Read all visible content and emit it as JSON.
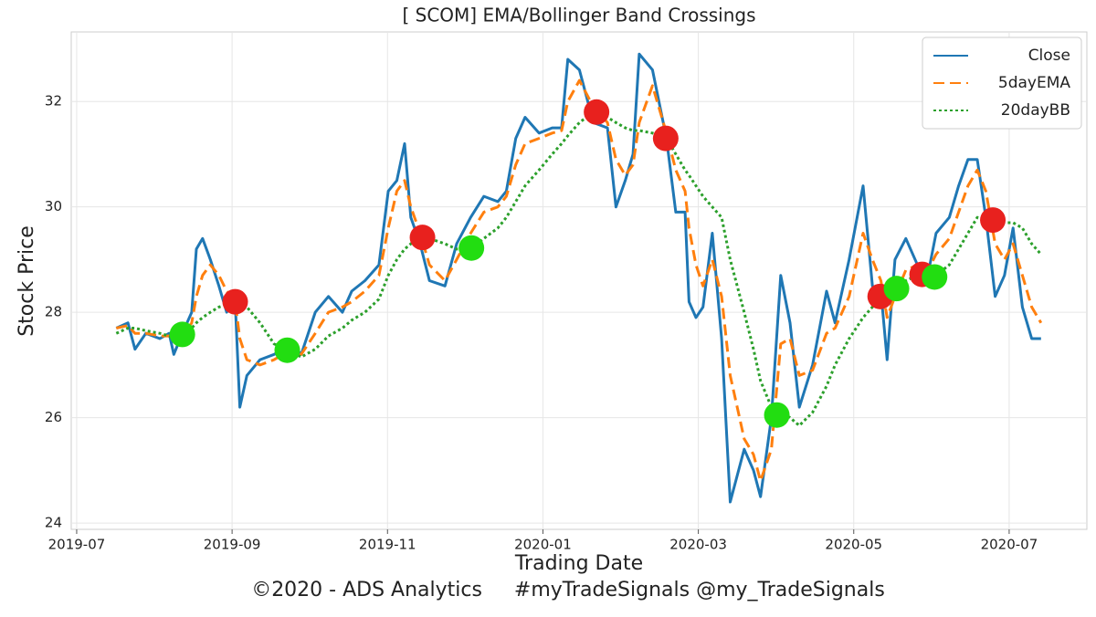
{
  "chart_data": {
    "type": "line",
    "title": "[ SCOM] EMA/Bollinger Band Crossings",
    "x_label": "Trading Date",
    "y_label": "Stock Price",
    "footer": "©2020 - ADS Analytics     #myTradeSignals @my_TradeSignals",
    "x": [
      0.51,
      0.66,
      0.75,
      0.89,
      1.07,
      1.19,
      1.25,
      1.36,
      1.48,
      1.54,
      1.62,
      1.72,
      1.83,
      1.93,
      2.04,
      2.1,
      2.19,
      2.36,
      2.54,
      2.77,
      2.89,
      3.07,
      3.24,
      3.42,
      3.54,
      3.71,
      3.89,
      4.01,
      4.12,
      4.22,
      4.3,
      4.42,
      4.54,
      4.74,
      4.89,
      5.07,
      5.24,
      5.42,
      5.53,
      5.65,
      5.77,
      5.95,
      6.12,
      6.24,
      6.32,
      6.47,
      6.65,
      6.83,
      6.94,
      7.06,
      7.16,
      7.24,
      7.41,
      7.59,
      7.71,
      7.83,
      7.88,
      7.97,
      8.06,
      8.18,
      8.3,
      8.41,
      8.59,
      8.71,
      8.8,
      8.94,
      9.06,
      9.18,
      9.3,
      9.47,
      9.65,
      9.76,
      9.94,
      10.12,
      10.24,
      10.35,
      10.43,
      10.53,
      10.67,
      10.82,
      10.94,
      11.06,
      11.23,
      11.35,
      11.47,
      11.59,
      11.7,
      11.82,
      11.94,
      12.05,
      12.17,
      12.29,
      12.41
    ],
    "series": [
      {
        "name": "Close",
        "color": "#1f77b4",
        "linestyle": "solid",
        "values": [
          27.7,
          27.8,
          27.3,
          27.6,
          27.5,
          27.6,
          27.2,
          27.6,
          28.0,
          29.2,
          29.4,
          29.0,
          28.5,
          28.0,
          28.2,
          26.2,
          26.8,
          27.1,
          27.2,
          27.4,
          27.2,
          28.0,
          28.3,
          28.0,
          28.4,
          28.6,
          28.9,
          30.3,
          30.5,
          31.2,
          29.8,
          29.3,
          28.6,
          28.5,
          29.3,
          29.8,
          30.2,
          30.1,
          30.3,
          31.3,
          31.7,
          31.4,
          31.5,
          31.5,
          32.8,
          32.6,
          31.6,
          31.5,
          30.0,
          30.5,
          31.0,
          32.9,
          32.6,
          31.3,
          29.9,
          29.9,
          28.2,
          27.9,
          28.1,
          29.5,
          27.5,
          24.4,
          25.4,
          25.0,
          24.5,
          26.0,
          28.7,
          27.8,
          26.2,
          27.0,
          28.4,
          27.8,
          29.0,
          30.4,
          28.5,
          28.4,
          27.1,
          29.0,
          29.4,
          28.9,
          28.6,
          29.5,
          29.8,
          30.4,
          30.9,
          30.9,
          29.8,
          28.3,
          28.7,
          29.6,
          28.1,
          27.5,
          27.5
        ]
      },
      {
        "name": "5dayEMA",
        "color": "#ff7f0e",
        "linestyle": "dashed",
        "values": [
          27.7,
          27.75,
          27.6,
          27.6,
          27.55,
          27.55,
          27.5,
          27.55,
          27.8,
          28.3,
          28.7,
          28.9,
          28.7,
          28.4,
          28.2,
          27.5,
          27.1,
          27.0,
          27.1,
          27.3,
          27.2,
          27.6,
          28.0,
          28.1,
          28.2,
          28.4,
          28.7,
          29.6,
          30.3,
          30.5,
          30.0,
          29.5,
          28.9,
          28.6,
          29.0,
          29.5,
          29.9,
          30.0,
          30.2,
          30.8,
          31.2,
          31.3,
          31.4,
          31.45,
          32.0,
          32.4,
          31.9,
          31.6,
          30.9,
          30.6,
          30.8,
          31.6,
          32.3,
          31.4,
          30.7,
          30.3,
          29.6,
          28.9,
          28.5,
          29.0,
          28.3,
          26.8,
          25.6,
          25.3,
          24.8,
          25.4,
          27.4,
          27.5,
          26.8,
          26.9,
          27.6,
          27.7,
          28.3,
          29.5,
          29.0,
          28.6,
          27.9,
          28.3,
          28.8,
          28.9,
          28.75,
          29.1,
          29.4,
          29.9,
          30.4,
          30.7,
          30.3,
          29.3,
          29.0,
          29.3,
          28.7,
          28.1,
          27.8
        ]
      },
      {
        "name": "20dayBB",
        "color": "#2ca02c",
        "linestyle": "dotted",
        "values": [
          27.6,
          27.7,
          27.7,
          27.65,
          27.6,
          27.55,
          27.5,
          27.55,
          27.7,
          27.8,
          27.9,
          28.0,
          28.1,
          28.15,
          28.2,
          28.2,
          28.1,
          27.8,
          27.4,
          27.25,
          27.15,
          27.3,
          27.55,
          27.7,
          27.85,
          28.0,
          28.25,
          28.7,
          29.0,
          29.2,
          29.3,
          29.4,
          29.4,
          29.3,
          29.2,
          29.2,
          29.4,
          29.6,
          29.8,
          30.1,
          30.4,
          30.7,
          31.0,
          31.2,
          31.35,
          31.6,
          31.8,
          31.7,
          31.6,
          31.5,
          31.45,
          31.45,
          31.4,
          31.3,
          31.0,
          30.7,
          30.6,
          30.4,
          30.2,
          30.0,
          29.8,
          29.0,
          28.0,
          27.3,
          26.7,
          26.2,
          26.1,
          26.0,
          25.85,
          26.1,
          26.6,
          27.0,
          27.5,
          27.9,
          28.1,
          28.3,
          28.4,
          28.45,
          28.6,
          28.7,
          28.65,
          28.7,
          28.9,
          29.2,
          29.5,
          29.8,
          29.75,
          29.7,
          29.7,
          29.7,
          29.6,
          29.3,
          29.1
        ]
      }
    ],
    "signals": [
      {
        "color": "#e8211e",
        "x": [
          2.04,
          4.45,
          6.69,
          7.58,
          10.34,
          10.88,
          11.79
        ],
        "values": [
          28.2,
          29.42,
          31.8,
          31.3,
          28.3,
          28.72,
          29.75
        ]
      },
      {
        "color": "#22dd11",
        "x": [
          1.36,
          2.71,
          5.08,
          9.01,
          10.55,
          11.04
        ],
        "values": [
          27.58,
          27.28,
          29.22,
          26.05,
          28.45,
          28.67
        ]
      }
    ],
    "xlim": [
      -0.07,
      13.0
    ],
    "xticks": [
      {
        "value": 0,
        "label": "2019-07"
      },
      {
        "value": 2,
        "label": "2019-09"
      },
      {
        "value": 4,
        "label": "2019-11"
      },
      {
        "value": 6,
        "label": "2020-01"
      },
      {
        "value": 8,
        "label": "2020-03"
      },
      {
        "value": 10,
        "label": "2020-05"
      },
      {
        "value": 12,
        "label": "2020-07"
      }
    ],
    "ylim": [
      23.88,
      33.32
    ],
    "yticks": [
      24,
      26,
      28,
      30,
      32
    ],
    "grid": true,
    "legend": "upper right"
  }
}
